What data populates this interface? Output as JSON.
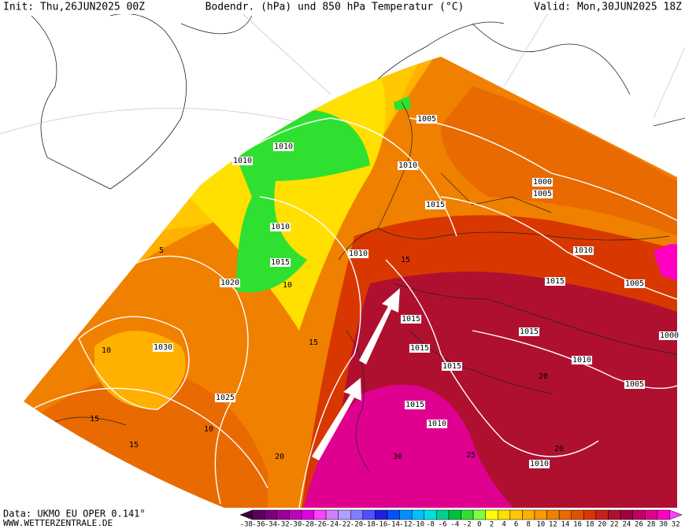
{
  "header": {
    "init": "Init: Thu,26JUN2025 00Z",
    "title": "Bodendr. (hPa) und 850 hPa Temperatur (°C)",
    "valid": "Valid: Mon,30JUN2025 18Z"
  },
  "isobars": {
    "labels": [
      "1005",
      "1010",
      "1010",
      "1010",
      "1000",
      "1005",
      "1015",
      "1010",
      "1010",
      "1015",
      "1020",
      "1015",
      "1015",
      "1015",
      "1015",
      "1015",
      "1030",
      "1025",
      "1015",
      "1010",
      "1010",
      "1005",
      "1000",
      "1005",
      "1010",
      "1010"
    ]
  },
  "isotherms": {
    "labels": [
      "5",
      "10",
      "15",
      "15",
      "10",
      "15",
      "20",
      "25",
      "30",
      "20",
      "10",
      "15",
      "20"
    ]
  },
  "colorbar": {
    "ticks": [
      -38,
      -36,
      -34,
      -32,
      -30,
      -28,
      -26,
      -24,
      -22,
      -20,
      -18,
      -16,
      -14,
      -12,
      -10,
      -8,
      -6,
      -4,
      -2,
      0,
      2,
      4,
      6,
      8,
      10,
      12,
      14,
      16,
      18,
      20,
      22,
      24,
      26,
      28,
      30,
      32
    ],
    "colors": [
      "#3c003c",
      "#5a005a",
      "#7a007a",
      "#9a009a",
      "#c000c0",
      "#e000e0",
      "#ff40ff",
      "#d080ff",
      "#b0a0ff",
      "#8080ff",
      "#5050ff",
      "#2020e0",
      "#0050ff",
      "#0090ff",
      "#00c0ff",
      "#00e0e0",
      "#00d090",
      "#00c040",
      "#30e030",
      "#80ff40",
      "#ffff00",
      "#ffe000",
      "#ffc800",
      "#ffb000",
      "#ff9800",
      "#f08000",
      "#e86a00",
      "#e05000",
      "#d83800",
      "#c82020",
      "#b01030",
      "#a00040",
      "#c00060",
      "#e00090",
      "#ff00c0",
      "#ff40ff"
    ]
  },
  "footer": {
    "data": "Data: UKMO EU OPER 0.141°",
    "site": "WWW.WETTERZENTRALE.DE"
  }
}
